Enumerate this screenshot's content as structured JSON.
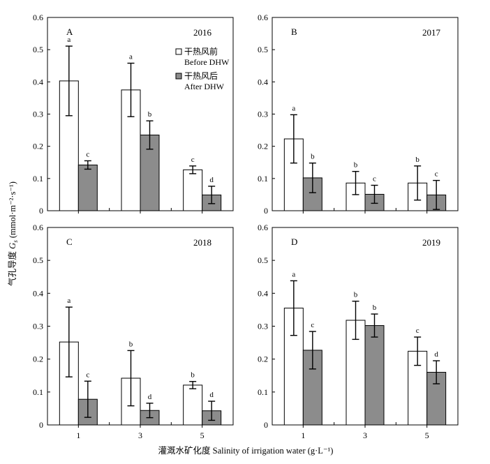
{
  "colors": {
    "before": "#ffffff",
    "after": "#8c8c8c",
    "stroke": "#000000"
  },
  "legend": {
    "before_label_cn": "干热风前",
    "before_label_en": "Before DHW",
    "after_label_cn": "干热风后",
    "after_label_en": "After DHW"
  },
  "axes": {
    "xlabel": "灌溉水矿化度 Salinity of irrigation water (g·L⁻¹)",
    "ylabel_prefix": "气孔导度 ",
    "ylabel_var": "G",
    "ylabel_sub": "s",
    "ylabel_unit": " (mmol·m⁻²·s⁻¹)",
    "y_ticks": [
      "0",
      "0.1",
      "0.2",
      "0.3",
      "0.4",
      "0.5",
      "0.6"
    ],
    "x_ticks": [
      "1",
      "3",
      "5"
    ]
  },
  "panel_labels": [
    {
      "letter": "A",
      "year": "2016"
    },
    {
      "letter": "B",
      "year": "2017"
    },
    {
      "letter": "C",
      "year": "2018"
    },
    {
      "letter": "D",
      "year": "2019"
    }
  ],
  "chart_data": [
    {
      "type": "bar",
      "panel": "A",
      "title": "2016",
      "categories": [
        "1",
        "3",
        "5"
      ],
      "ylim": [
        0,
        0.6
      ],
      "series": [
        {
          "name": "Before DHW",
          "values": [
            0.403,
            0.375,
            0.127
          ],
          "errors": [
            0.108,
            0.083,
            0.012
          ],
          "letters": [
            "a",
            "a",
            "c"
          ]
        },
        {
          "name": "After DHW",
          "values": [
            0.142,
            0.235,
            0.049
          ],
          "errors": [
            0.013,
            0.044,
            0.027
          ],
          "letters": [
            "c",
            "b",
            "d"
          ]
        }
      ]
    },
    {
      "type": "bar",
      "panel": "B",
      "title": "2017",
      "categories": [
        "1",
        "3",
        "5"
      ],
      "ylim": [
        0,
        0.6
      ],
      "series": [
        {
          "name": "Before DHW",
          "values": [
            0.223,
            0.086,
            0.086
          ],
          "errors": [
            0.075,
            0.036,
            0.053
          ],
          "letters": [
            "a",
            "b",
            "b"
          ]
        },
        {
          "name": "After DHW",
          "values": [
            0.102,
            0.051,
            0.049
          ],
          "errors": [
            0.046,
            0.028,
            0.045
          ],
          "letters": [
            "b",
            "c",
            "c"
          ]
        }
      ]
    },
    {
      "type": "bar",
      "panel": "C",
      "title": "2018",
      "categories": [
        "1",
        "3",
        "5"
      ],
      "ylim": [
        0,
        0.6
      ],
      "series": [
        {
          "name": "Before DHW",
          "values": [
            0.252,
            0.142,
            0.121
          ],
          "errors": [
            0.106,
            0.084,
            0.011
          ],
          "letters": [
            "a",
            "b",
            "b"
          ]
        },
        {
          "name": "After DHW",
          "values": [
            0.078,
            0.044,
            0.043
          ],
          "errors": [
            0.055,
            0.022,
            0.029
          ],
          "letters": [
            "c",
            "d",
            "d"
          ]
        }
      ]
    },
    {
      "type": "bar",
      "panel": "D",
      "title": "2019",
      "categories": [
        "1",
        "3",
        "5"
      ],
      "ylim": [
        0,
        0.6
      ],
      "series": [
        {
          "name": "Before DHW",
          "values": [
            0.355,
            0.318,
            0.224
          ],
          "errors": [
            0.083,
            0.058,
            0.043
          ],
          "letters": [
            "a",
            "b",
            "c"
          ]
        },
        {
          "name": "After DHW",
          "values": [
            0.227,
            0.302,
            0.16
          ],
          "errors": [
            0.057,
            0.035,
            0.035
          ],
          "letters": [
            "c",
            "b",
            "d"
          ]
        }
      ]
    }
  ]
}
